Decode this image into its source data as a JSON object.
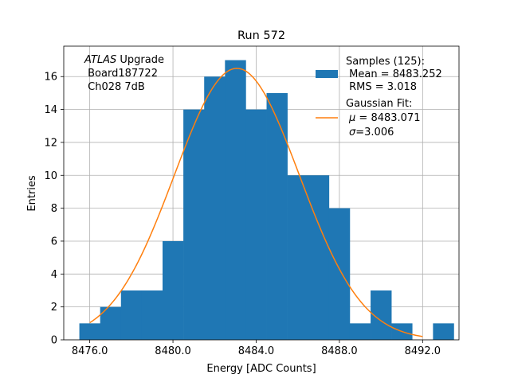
{
  "chart_data": {
    "type": "bar",
    "title": "Run 572",
    "xlabel": "Energy [ADC Counts]",
    "ylabel": "Entries",
    "xlim": [
      8474.75,
      8493.75
    ],
    "ylim": [
      0,
      17.85
    ],
    "grid": true,
    "x_ticks": [
      8476.0,
      8480.0,
      8484.0,
      8488.0,
      8492.0
    ],
    "x_tick_labels": [
      "8476.0",
      "8480.0",
      "8484.0",
      "8488.0",
      "8492.0"
    ],
    "y_ticks": [
      0,
      2,
      4,
      6,
      8,
      10,
      12,
      14,
      16
    ],
    "y_tick_labels": [
      "0",
      "2",
      "4",
      "6",
      "8",
      "10",
      "12",
      "14",
      "16"
    ],
    "bin_width": 1,
    "bin_edges_start": 8475.5,
    "counts": [
      1,
      2,
      3,
      3,
      6,
      14,
      16,
      17,
      14,
      15,
      10,
      10,
      8,
      1,
      3,
      1,
      0,
      1
    ],
    "histogram_color": "#1f77b4",
    "fit": {
      "mu": 8483.071,
      "sigma": 3.006,
      "amplitude": 16.5,
      "x_range": [
        8476.0,
        8492.0
      ],
      "color": "#ff7f0e"
    },
    "annotation": {
      "line1_italic": "ATLAS",
      "line1_rest": " Upgrade",
      "line2": " Board187722",
      "line3": " Ch028 7dB"
    },
    "legend": {
      "placement": "top-right",
      "samples_line1": "Samples (125):",
      "samples_line2": " Mean = 8483.252",
      "samples_line3": " RMS = 3.018",
      "fit_line1": "Gaussian Fit:",
      "fit_mu_symbol": "μ",
      "fit_mu_rest": " = 8483.071",
      "fit_sigma_symbol": "σ",
      "fit_sigma_rest": "=3.006"
    }
  }
}
